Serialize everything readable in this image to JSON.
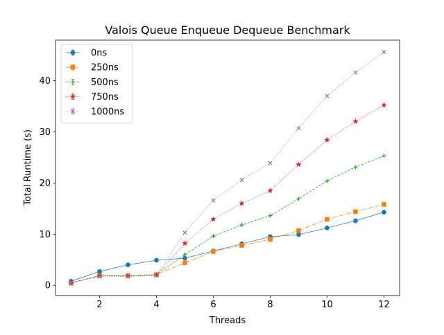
{
  "chart_data": {
    "type": "line",
    "title": "Valois Queue Enqueue Dequeue Benchmark",
    "xlabel": "Threads",
    "ylabel": "Total Runtime (s)",
    "xlim": [
      0.45,
      12.55
    ],
    "ylim": [
      -2.0,
      47.9
    ],
    "xticks": [
      2,
      4,
      6,
      8,
      10,
      12
    ],
    "yticks": [
      0,
      10,
      20,
      30,
      40
    ],
    "grid": false,
    "legend_position": "upper-left",
    "x": [
      1,
      2,
      3,
      4,
      5,
      6,
      7,
      8,
      9,
      10,
      11,
      12
    ],
    "series": [
      {
        "name": "0ns",
        "color": "#1f77b4",
        "marker": "circle",
        "linestyle": "solid",
        "values": [
          0.8,
          2.7,
          4.0,
          4.9,
          5.3,
          6.7,
          8.1,
          9.5,
          9.9,
          11.2,
          12.6,
          14.3
        ]
      },
      {
        "name": "250ns",
        "color": "#ff7f0e",
        "marker": "square",
        "linestyle": "dashdot",
        "values": [
          0.4,
          1.9,
          1.9,
          2.1,
          4.4,
          6.6,
          7.8,
          9.0,
          10.7,
          12.9,
          14.4,
          15.8
        ]
      },
      {
        "name": "500ns",
        "color": "#2ca02c",
        "marker": "plus",
        "linestyle": "dashed",
        "values": [
          0.5,
          1.9,
          1.9,
          2.1,
          6.0,
          9.6,
          11.8,
          13.6,
          16.9,
          20.4,
          23.1,
          25.3
        ]
      },
      {
        "name": "750ns",
        "color": "#d62728",
        "marker": "star",
        "linestyle": "dotted",
        "values": [
          0.5,
          1.8,
          1.8,
          2.0,
          8.2,
          12.9,
          16.0,
          18.5,
          23.6,
          28.4,
          32.0,
          35.2
        ]
      },
      {
        "name": "1000ns",
        "color": "#9467bd",
        "marker": "x",
        "linestyle": "dotted",
        "values": [
          0.5,
          1.8,
          1.7,
          1.9,
          10.3,
          16.6,
          20.6,
          23.9,
          30.7,
          37.0,
          41.6,
          45.6
        ]
      }
    ]
  }
}
